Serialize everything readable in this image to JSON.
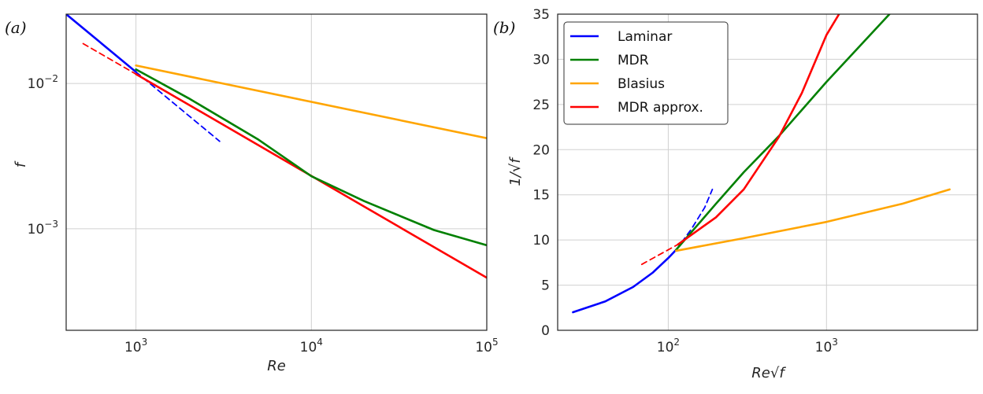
{
  "chart_data": [
    {
      "type": "line",
      "panel_label": "(a)",
      "xlabel": "Re",
      "ylabel": "f",
      "xscale": "log",
      "yscale": "log",
      "xlim": [
        400,
        100000
      ],
      "ylim": [
        0.0002,
        0.03
      ],
      "grid": true,
      "xticks": [
        {
          "base": "10",
          "exp": "3",
          "value": 1000
        },
        {
          "base": "10",
          "exp": "4",
          "value": 10000
        },
        {
          "base": "10",
          "exp": "5",
          "value": 100000
        }
      ],
      "yticks": [
        {
          "base": "10",
          "exp": "−3",
          "value": 0.001
        },
        {
          "base": "10",
          "exp": "−2",
          "value": 0.01
        }
      ],
      "series": [
        {
          "color": "#0000ff",
          "style": "solid",
          "x": [
            400,
            1000
          ],
          "y": [
            0.03,
            0.012
          ]
        },
        {
          "color": "#0000ff",
          "style": "dashed",
          "x": [
            1000,
            3000
          ],
          "y": [
            0.012,
            0.004
          ]
        },
        {
          "color": "#ff0000",
          "style": "dashed",
          "x": [
            500,
            1000
          ],
          "y": [
            0.0188,
            0.0116
          ]
        },
        {
          "color": "#ff0000",
          "style": "solid",
          "x": [
            1000,
            100000
          ],
          "y": [
            0.0116,
            0.00046
          ]
        },
        {
          "color": "#008000",
          "style": "solid",
          "x": [
            1000,
            2000,
            5000,
            10000,
            20000,
            50000,
            100000
          ],
          "y": [
            0.0125,
            0.0079,
            0.0041,
            0.0023,
            0.00155,
            0.00098,
            0.00077
          ]
        },
        {
          "color": "#ffa500",
          "style": "solid",
          "x": [
            1000,
            100000
          ],
          "y": [
            0.0133,
            0.0042
          ]
        }
      ]
    },
    {
      "type": "line",
      "panel_label": "(b)",
      "xlabel": "Re√f",
      "ylabel": "1/√f",
      "xscale": "log",
      "yscale": "linear",
      "xlim": [
        20,
        9000
      ],
      "ylim": [
        0,
        35
      ],
      "grid": true,
      "legend_position": "top-left",
      "xticks": [
        {
          "base": "10",
          "exp": "2",
          "value": 100
        },
        {
          "base": "10",
          "exp": "3",
          "value": 1000
        }
      ],
      "yticks": [
        {
          "label": "0",
          "value": 0
        },
        {
          "label": "5",
          "value": 5
        },
        {
          "label": "10",
          "value": 10
        },
        {
          "label": "15",
          "value": 15
        },
        {
          "label": "20",
          "value": 20
        },
        {
          "label": "25",
          "value": 25
        },
        {
          "label": "30",
          "value": 30
        },
        {
          "label": "35",
          "value": 35
        }
      ],
      "legend": [
        {
          "label": "Laminar",
          "color": "#0000ff"
        },
        {
          "label": "MDR",
          "color": "#008000"
        },
        {
          "label": "Blasius",
          "color": "#ffa500"
        },
        {
          "label": "MDR approx.",
          "color": "#ff0000"
        }
      ],
      "series": [
        {
          "name": "Laminar",
          "color": "#0000ff",
          "style": "solid",
          "x": [
            25,
            40,
            60,
            80,
            100,
            112
          ],
          "y": [
            2.0,
            3.2,
            4.8,
            6.4,
            8.0,
            8.9
          ]
        },
        {
          "color": "#0000ff",
          "style": "dashed",
          "x": [
            112,
            140,
            170,
            190
          ],
          "y": [
            8.9,
            11.2,
            13.6,
            15.6
          ]
        },
        {
          "name": "MDR",
          "color": "#008000",
          "style": "solid",
          "x": [
            112,
            200,
            300,
            500,
            1000,
            2500
          ],
          "y": [
            8.9,
            14.0,
            17.5,
            21.5,
            27.5,
            35.0
          ]
        },
        {
          "name": "Blasius",
          "color": "#ffa500",
          "style": "solid",
          "x": [
            112,
            300,
            1000,
            3000,
            6000
          ],
          "y": [
            8.8,
            10.2,
            12.0,
            14.0,
            15.6
          ]
        },
        {
          "color": "#ff0000",
          "style": "dashed",
          "x": [
            68,
            115
          ],
          "y": [
            7.3,
            9.5
          ]
        },
        {
          "name": "MDR approx.",
          "color": "#ff0000",
          "style": "solid",
          "x": [
            115,
            200,
            300,
            500,
            700,
            1000,
            1200
          ],
          "y": [
            9.5,
            12.5,
            15.6,
            21.4,
            26.3,
            32.7,
            35.0
          ]
        }
      ]
    }
  ]
}
